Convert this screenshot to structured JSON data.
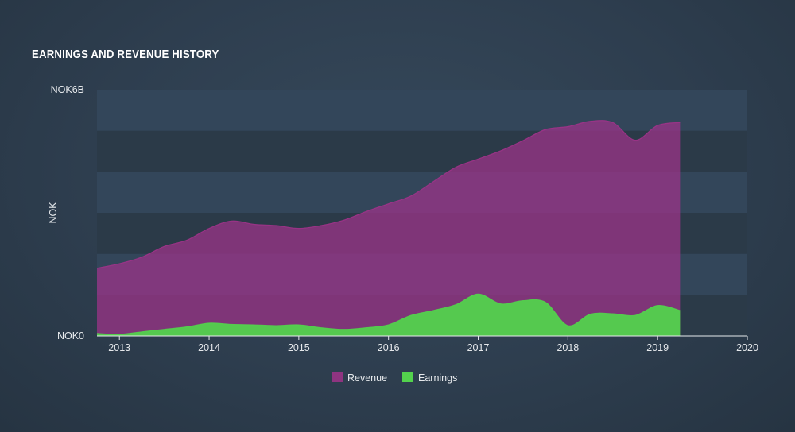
{
  "header": {
    "title": "EARNINGS AND REVENUE HISTORY"
  },
  "chart_data": {
    "type": "area",
    "title": "EARNINGS AND REVENUE HISTORY",
    "ylabel": "NOK",
    "xlabel": "",
    "y_top_label": "NOK6B",
    "y_bottom_label": "NOK0",
    "ylim": [
      0,
      6
    ],
    "xlim": [
      2012.75,
      2020.0
    ],
    "x_ticks": [
      "2013",
      "2014",
      "2015",
      "2016",
      "2017",
      "2018",
      "2019",
      "2020"
    ],
    "x_tick_values": [
      2013,
      2014,
      2015,
      2016,
      2017,
      2018,
      2019,
      2020
    ],
    "grid_bands": true,
    "legend_position": "bottom-center",
    "series": [
      {
        "name": "Revenue",
        "color": "#a0338a",
        "x": [
          2012.75,
          2013.0,
          2013.25,
          2013.5,
          2013.75,
          2014.0,
          2014.25,
          2014.5,
          2014.75,
          2015.0,
          2015.25,
          2015.5,
          2015.75,
          2016.0,
          2016.25,
          2016.5,
          2016.75,
          2017.0,
          2017.25,
          2017.5,
          2017.75,
          2018.0,
          2018.25,
          2018.5,
          2018.75,
          2019.0,
          2019.25
        ],
        "values": [
          1.65,
          1.76,
          1.92,
          2.18,
          2.33,
          2.62,
          2.8,
          2.72,
          2.69,
          2.62,
          2.69,
          2.82,
          3.03,
          3.22,
          3.41,
          3.76,
          4.11,
          4.31,
          4.51,
          4.76,
          5.03,
          5.1,
          5.23,
          5.2,
          4.77,
          5.13,
          5.2
        ]
      },
      {
        "name": "Earnings",
        "color": "#53d24d",
        "x": [
          2012.75,
          2013.0,
          2013.25,
          2013.5,
          2013.75,
          2014.0,
          2014.25,
          2014.5,
          2014.75,
          2015.0,
          2015.25,
          2015.5,
          2015.75,
          2016.0,
          2016.25,
          2016.5,
          2016.75,
          2017.0,
          2017.25,
          2017.5,
          2017.75,
          2018.0,
          2018.25,
          2018.5,
          2018.75,
          2019.0,
          2019.25
        ],
        "values": [
          0.06,
          0.04,
          0.1,
          0.16,
          0.22,
          0.31,
          0.28,
          0.27,
          0.25,
          0.27,
          0.2,
          0.16,
          0.2,
          0.27,
          0.5,
          0.62,
          0.76,
          1.02,
          0.78,
          0.86,
          0.82,
          0.25,
          0.53,
          0.54,
          0.5,
          0.74,
          0.62
        ]
      }
    ]
  }
}
